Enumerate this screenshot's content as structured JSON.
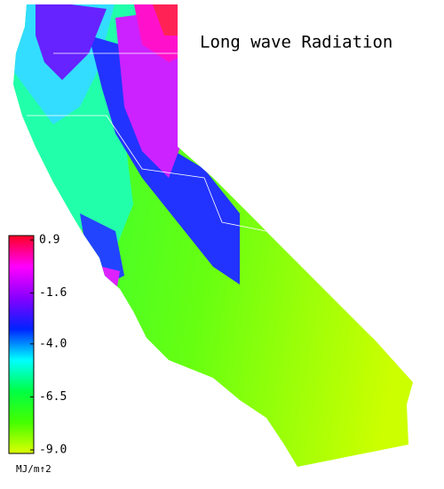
{
  "title": "Long wave Radiation",
  "colorbar": {
    "lim": [
      -9.0,
      0.9
    ],
    "ticks": [
      0.9,
      -1.6,
      {
        "value": -4.0,
        "label": "-4.0"
      },
      -6.5,
      {
        "value": -9.0,
        "label": "-9.0"
      }
    ],
    "colors": [
      "#ff0022",
      "#ff00ff",
      "#8800ff",
      "#0022ff",
      "#00ffff",
      "#00ff44",
      "#44ff00",
      "#ddff00"
    ],
    "unit": "MJ/m↑2"
  }
}
